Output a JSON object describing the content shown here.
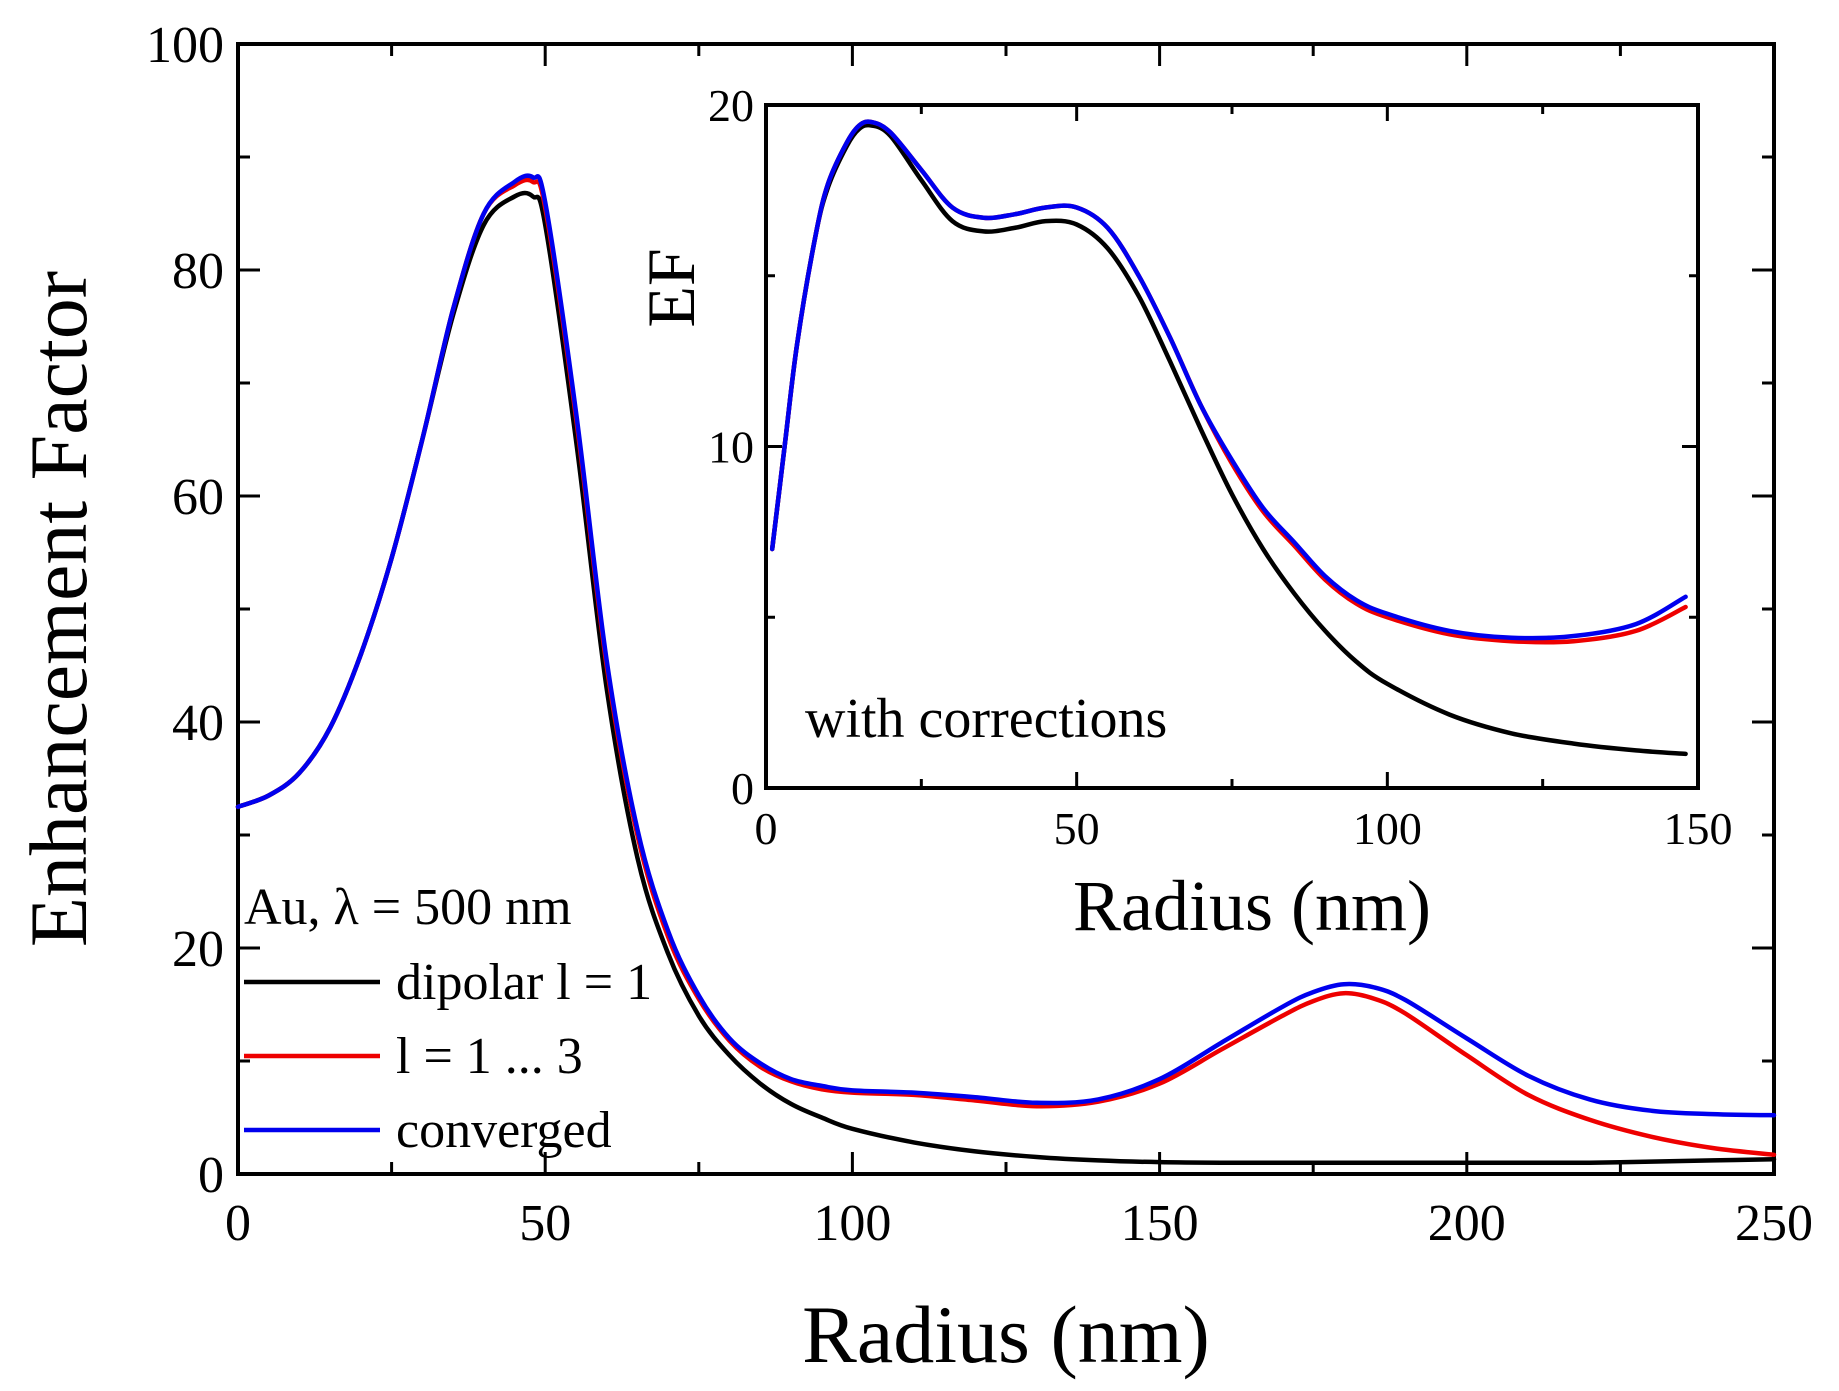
{
  "chart_data": [
    {
      "id": "main",
      "type": "line",
      "title": "",
      "xlabel": "Radius (nm)",
      "ylabel": "Enhancement Factor",
      "xlim": [
        0,
        250
      ],
      "ylim": [
        0,
        100
      ],
      "xticks": [
        0,
        50,
        100,
        150,
        200,
        250
      ],
      "xtick_labels": [
        "0",
        "50",
        "100",
        "150",
        "200",
        "250"
      ],
      "yticks": [
        0,
        20,
        40,
        60,
        80,
        100
      ],
      "ytick_labels": [
        "0",
        "20",
        "40",
        "60",
        "80",
        "100"
      ],
      "grid": false,
      "legend": {
        "placement": "bottom-left",
        "title": "Au, λ = 500 nm",
        "entries": [
          "dipolar l = 1",
          "l = 1 ... 3",
          "converged"
        ]
      },
      "series": [
        {
          "name": "dipolar l = 1",
          "color": "#000000",
          "x": [
            0,
            5,
            10,
            15,
            20,
            25,
            30,
            35,
            40,
            45,
            48,
            50,
            55,
            60,
            65,
            70,
            75,
            80,
            85,
            90,
            95,
            100,
            110,
            120,
            130,
            140,
            150,
            160,
            170,
            180,
            190,
            200,
            210,
            220,
            230,
            240,
            250
          ],
          "y": [
            32.5,
            33.5,
            35.5,
            39.5,
            46,
            54.5,
            65,
            76,
            84,
            86.5,
            86.5,
            84,
            65,
            43,
            28,
            19.5,
            14,
            10.5,
            8,
            6.2,
            5,
            4,
            2.8,
            2,
            1.5,
            1.2,
            1.05,
            1,
            1,
            1,
            1,
            1,
            1,
            1,
            1.1,
            1.2,
            1.3
          ]
        },
        {
          "name": "l = 1 ... 3",
          "color": "#ee0000",
          "x": [
            0,
            5,
            10,
            15,
            20,
            25,
            30,
            35,
            40,
            45,
            48,
            50,
            55,
            60,
            65,
            70,
            75,
            80,
            85,
            90,
            95,
            100,
            110,
            120,
            130,
            140,
            150,
            160,
            170,
            175,
            180,
            185,
            190,
            200,
            210,
            220,
            230,
            240,
            250
          ],
          "y": [
            32.5,
            33.5,
            35.5,
            39.5,
            46,
            54.5,
            65,
            76.5,
            85,
            87.5,
            87.8,
            85.5,
            67,
            45,
            30,
            21,
            15.5,
            11.8,
            9.5,
            8.2,
            7.5,
            7.2,
            7,
            6.5,
            6,
            6.4,
            8,
            11,
            14,
            15.3,
            16,
            15.5,
            14.2,
            10.5,
            7,
            4.8,
            3.3,
            2.3,
            1.7
          ]
        },
        {
          "name": "converged",
          "color": "#0000ee",
          "x": [
            0,
            5,
            10,
            15,
            20,
            25,
            30,
            35,
            40,
            45,
            48,
            50,
            55,
            60,
            65,
            70,
            75,
            80,
            85,
            90,
            95,
            100,
            110,
            120,
            130,
            140,
            150,
            160,
            170,
            175,
            180,
            185,
            190,
            200,
            210,
            220,
            230,
            240,
            250
          ],
          "y": [
            32.5,
            33.5,
            35.5,
            39.5,
            46,
            54.5,
            65,
            76.5,
            85,
            87.8,
            88.2,
            86,
            67.5,
            45.5,
            30.5,
            21.5,
            15.8,
            12,
            9.8,
            8.4,
            7.8,
            7.4,
            7.2,
            6.8,
            6.3,
            6.6,
            8.4,
            11.6,
            14.8,
            16.1,
            16.8,
            16.5,
            15.4,
            12,
            8.7,
            6.6,
            5.6,
            5.3,
            5.2
          ]
        }
      ]
    },
    {
      "id": "inset",
      "type": "line",
      "title": "",
      "xlabel": "Radius (nm)",
      "ylabel": "EF",
      "annotation": "with corrections",
      "xlim": [
        0,
        150
      ],
      "ylim": [
        0,
        20
      ],
      "xticks": [
        0,
        50,
        100,
        150
      ],
      "xtick_labels": [
        "0",
        "50",
        "100",
        "150"
      ],
      "yticks": [
        0,
        10,
        20
      ],
      "ytick_labels": [
        "0",
        "10",
        "20"
      ],
      "grid": false,
      "series": [
        {
          "name": "dipolar l = 1",
          "color": "#000000",
          "x": [
            1,
            3,
            5,
            8,
            10,
            13,
            15,
            17,
            20,
            25,
            30,
            35,
            40,
            45,
            50,
            55,
            60,
            65,
            70,
            75,
            80,
            85,
            90,
            95,
            100,
            110,
            120,
            130,
            140,
            148
          ],
          "y": [
            7,
            10,
            13,
            16.2,
            17.6,
            18.8,
            19.3,
            19.4,
            19.1,
            17.8,
            16.6,
            16.3,
            16.4,
            16.6,
            16.5,
            15.8,
            14.4,
            12.5,
            10.5,
            8.6,
            7,
            5.7,
            4.6,
            3.7,
            3.05,
            2.15,
            1.6,
            1.3,
            1.1,
            1.0
          ]
        },
        {
          "name": "l = 1 ... 3",
          "color": "#ee0000",
          "x": [
            1,
            3,
            5,
            8,
            10,
            13,
            15,
            17,
            20,
            25,
            30,
            35,
            40,
            45,
            50,
            55,
            60,
            65,
            70,
            75,
            80,
            85,
            90,
            95,
            100,
            110,
            120,
            130,
            140,
            148
          ],
          "y": [
            7,
            10,
            13,
            16.2,
            17.7,
            18.9,
            19.4,
            19.5,
            19.2,
            18.1,
            17,
            16.7,
            16.8,
            17,
            17,
            16.4,
            15,
            13.2,
            11.2,
            9.5,
            8.1,
            7.1,
            6.1,
            5.4,
            5,
            4.5,
            4.3,
            4.3,
            4.6,
            5.3
          ]
        },
        {
          "name": "converged",
          "color": "#0000ee",
          "x": [
            1,
            3,
            5,
            8,
            10,
            13,
            15,
            17,
            20,
            25,
            30,
            35,
            40,
            45,
            50,
            55,
            60,
            65,
            70,
            75,
            80,
            85,
            90,
            95,
            100,
            110,
            120,
            130,
            140,
            148
          ],
          "y": [
            7,
            10,
            13,
            16.2,
            17.7,
            18.9,
            19.4,
            19.5,
            19.2,
            18.1,
            17,
            16.7,
            16.8,
            17,
            17,
            16.4,
            15,
            13.2,
            11.2,
            9.6,
            8.2,
            7.2,
            6.2,
            5.5,
            5.1,
            4.6,
            4.4,
            4.45,
            4.8,
            5.6
          ]
        }
      ]
    }
  ]
}
